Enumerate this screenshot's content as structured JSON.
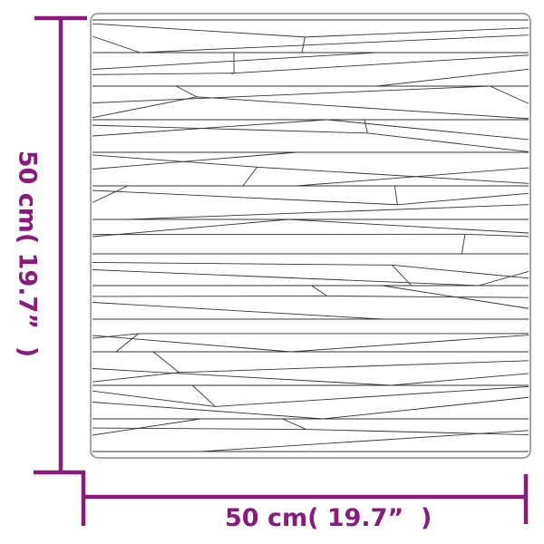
{
  "dimensions": {
    "width_label": "50 cm( 19.7”  )",
    "height_label": "50 cm( 19.7”  )"
  },
  "colors": {
    "dimension_line": "#8B1A7F",
    "panel_line": "#333333",
    "panel_border": "#888888"
  }
}
